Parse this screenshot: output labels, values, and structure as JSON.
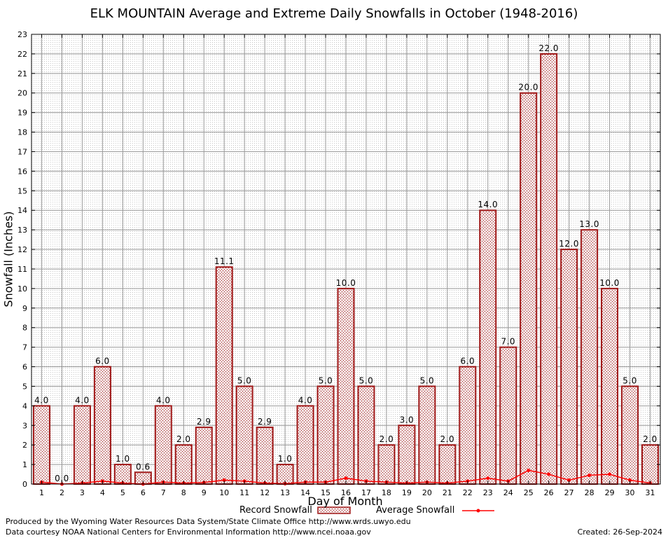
{
  "chart_data": {
    "type": "bar",
    "title": "ELK MOUNTAIN Average and Extreme Daily Snowfalls in October (1948-2016)",
    "xlabel": "Day of Month",
    "ylabel": "Snowfall (Inches)",
    "ylim": [
      0,
      23
    ],
    "yticks": [
      0,
      1,
      2,
      3,
      4,
      5,
      6,
      7,
      8,
      9,
      10,
      11,
      12,
      13,
      14,
      15,
      16,
      17,
      18,
      19,
      20,
      21,
      22,
      23
    ],
    "grid": true,
    "categories": [
      "1",
      "2",
      "3",
      "4",
      "5",
      "6",
      "7",
      "8",
      "9",
      "10",
      "11",
      "12",
      "13",
      "14",
      "15",
      "16",
      "17",
      "18",
      "19",
      "20",
      "21",
      "22",
      "23",
      "24",
      "25",
      "26",
      "27",
      "28",
      "29",
      "30",
      "31"
    ],
    "series": [
      {
        "name": "Record Snowfall",
        "kind": "bar",
        "values": [
          4.0,
          0.0,
          4.0,
          6.0,
          1.0,
          0.6,
          4.0,
          2.0,
          2.9,
          11.1,
          5.0,
          2.9,
          1.0,
          4.0,
          5.0,
          10.0,
          5.0,
          2.0,
          3.0,
          5.0,
          2.0,
          6.0,
          14.0,
          7.0,
          20.0,
          22.0,
          12.0,
          13.0,
          10.0,
          5.0,
          2.0
        ],
        "labels": [
          "4.0",
          "0.0",
          "4.0",
          "6.0",
          "1.0",
          "0.6",
          "4.0",
          "2.0",
          "2.9",
          "11.1",
          "5.0",
          "2.9",
          "1.0",
          "4.0",
          "5.0",
          "10.0",
          "5.0",
          "2.0",
          "3.0",
          "5.0",
          "2.0",
          "6.0",
          "14.0",
          "7.0",
          "20.0",
          "22.0",
          "12.0",
          "13.0",
          "10.0",
          "5.0",
          "2.0"
        ],
        "color": "#a01818"
      },
      {
        "name": "Average Snowfall",
        "kind": "line",
        "values": [
          0.1,
          0.0,
          0.05,
          0.15,
          0.05,
          0.0,
          0.1,
          0.05,
          0.08,
          0.2,
          0.15,
          0.05,
          0.02,
          0.1,
          0.1,
          0.3,
          0.15,
          0.1,
          0.05,
          0.1,
          0.05,
          0.15,
          0.3,
          0.15,
          0.7,
          0.5,
          0.2,
          0.45,
          0.5,
          0.2,
          0.05
        ],
        "color": "#ff0000"
      }
    ],
    "legend": {
      "position": "bottom",
      "record_label": "Record Snowfall",
      "average_label": "Average Snowfall"
    }
  },
  "footer": {
    "produced_by": "Produced by the Wyoming Water Resources Data System/State Climate Office http://www.wrds.uwyo.edu",
    "courtesy": "Data courtesy NOAA National Centers for Environmental Information http://www.ncei.noaa.gov",
    "created": "Created:  26-Sep-2024"
  },
  "colors": {
    "bar_fill": "#efdede",
    "bar_edge": "#a01818",
    "average_line": "#ff0000"
  }
}
